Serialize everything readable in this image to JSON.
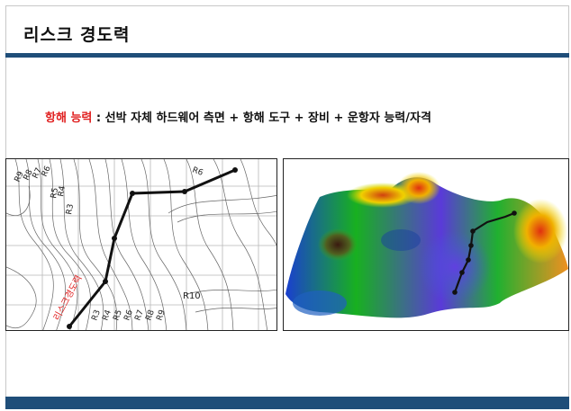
{
  "slide": {
    "title": "리스크 경도력",
    "subtitle_highlight": "항해 능력",
    "subtitle_rest": " : 선박 자체 하드웨어 측면 + 항해 도구 + 장비 + 운항자 능력/자격",
    "colors": {
      "accent": "#e02020",
      "bar": "#1f4e79"
    }
  },
  "contour_map": {
    "route_label": "리스크경도력",
    "labels_top_left": [
      "R9",
      "R8",
      "R7",
      "R6"
    ],
    "labels_mid": [
      "R5",
      "R4"
    ],
    "label_r3_upper": "R3",
    "label_r6_right": "R6",
    "labels_bottom": [
      "R3",
      "R4",
      "R5",
      "R6",
      "R7",
      "R8",
      "R9"
    ],
    "label_r10": "R10"
  },
  "surface_plot": {
    "description_icon": "3d-terrain-surface"
  }
}
